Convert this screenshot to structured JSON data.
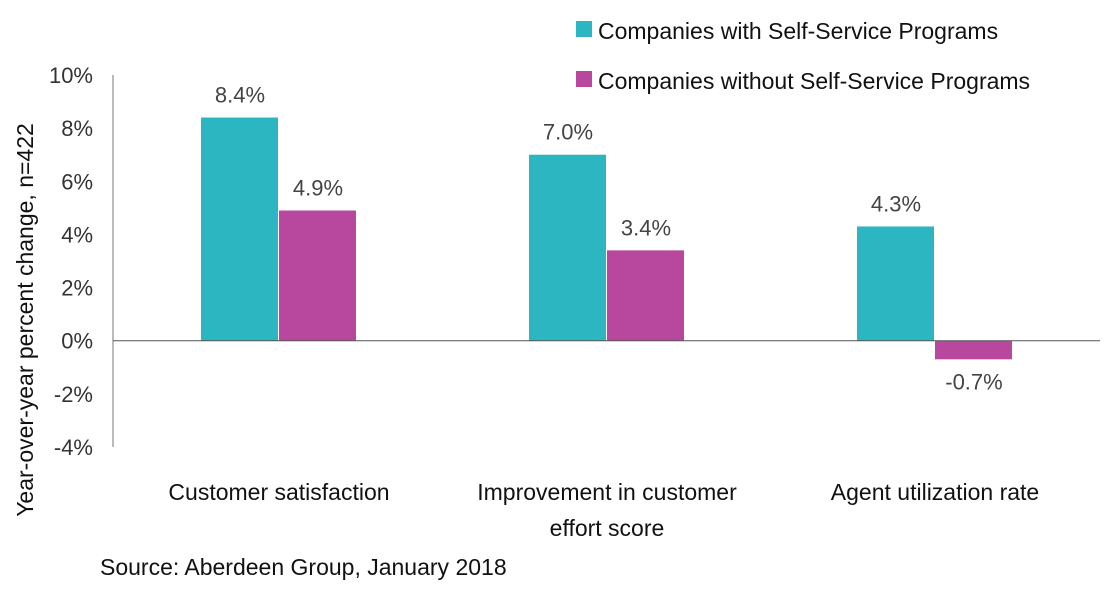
{
  "chart_data": {
    "type": "bar",
    "ylabel": "Year-over-year percent change, n=422",
    "categories": [
      [
        "Customer satisfaction"
      ],
      [
        "Improvement in customer",
        "effort score"
      ],
      [
        "Agent utilization rate"
      ]
    ],
    "series": [
      {
        "name": "Companies with Self-Service Programs",
        "color": "#2cb6c1",
        "values": [
          8.4,
          7.0,
          4.3
        ],
        "labels": [
          "8.4%",
          "7.0%",
          "4.3%"
        ]
      },
      {
        "name": "Companies without Self-Service Programs",
        "color": "#b8479e",
        "values": [
          4.9,
          3.4,
          -0.7
        ],
        "labels": [
          "4.9%",
          "3.4%",
          "-0.7%"
        ]
      }
    ],
    "ylim": [
      -4,
      10
    ],
    "yticks": [
      10,
      8,
      6,
      4,
      2,
      0,
      -2,
      -4
    ],
    "ytick_labels": [
      "10%",
      "8%",
      "6%",
      "4%",
      "2%",
      "0%",
      "-2%",
      "-4%"
    ],
    "grid": false,
    "legend_position": "top-right",
    "source": "Source: Aberdeen Group, January 2018"
  }
}
